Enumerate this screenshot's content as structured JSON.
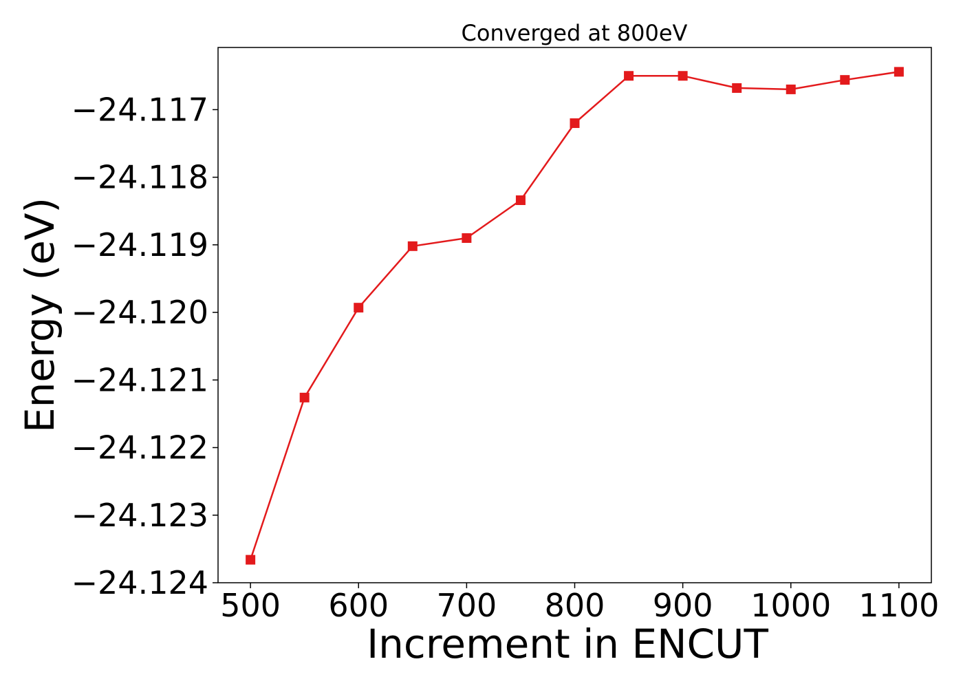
{
  "chart_data": {
    "type": "line",
    "title": "Converged at 800eV",
    "xlabel": "Increment in ENCUT",
    "ylabel": "Energy (eV)",
    "xlim": [
      470,
      1130
    ],
    "ylim": [
      -24.124,
      -24.11608
    ],
    "xticks": [
      500,
      600,
      700,
      800,
      900,
      1000,
      1100
    ],
    "xtick_labels": [
      "500",
      "600",
      "700",
      "800",
      "900",
      "1000",
      "1100"
    ],
    "yticks": [
      -24.117,
      -24.118,
      -24.119,
      -24.12,
      -24.121,
      -24.122,
      -24.123,
      -24.124
    ],
    "ytick_labels": [
      "−24.117",
      "−24.118",
      "−24.119",
      "−24.120",
      "−24.121",
      "−24.122",
      "−24.123",
      "−24.124"
    ],
    "grid": false,
    "series": [
      {
        "color": "#e31a1c",
        "marker": "square",
        "x": [
          500,
          550,
          600,
          650,
          700,
          750,
          800,
          850,
          900,
          950,
          1000,
          1050,
          1100
        ],
        "y": [
          -24.12366,
          -24.12126,
          -24.11993,
          -24.11902,
          -24.1189,
          -24.11834,
          -24.1172,
          -24.1165,
          -24.1165,
          -24.11668,
          -24.1167,
          -24.11656,
          -24.11644
        ]
      }
    ]
  }
}
